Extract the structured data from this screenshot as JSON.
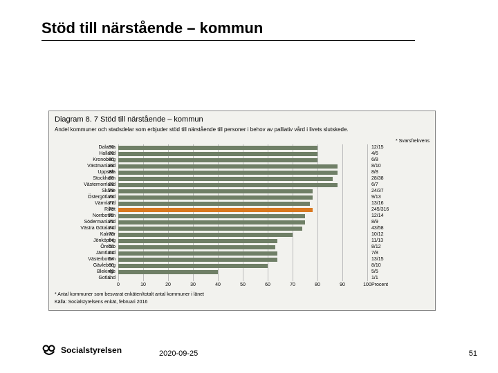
{
  "title": "Stöd till närstående – kommun",
  "chart": {
    "type": "bar-horizontal",
    "box_border": "#888888",
    "box_bg": "#f2f2ee",
    "title": "Diagram 8. 7 Stöd till närstående – kommun",
    "subtitle": "Andel kommuner och stadsdelar som erbjuder stöd till närstående till personer i behov av palliativ vård i livets slutskede.",
    "freq_header": "* Svarsfrekvens",
    "highlight_color": "#d9781f",
    "bar_color": "#6f7f66",
    "grid_color": "#bbbbbb",
    "text_color": "#000000",
    "title_fontsize": 11,
    "sub_fontsize": 8,
    "label_fontsize": 7,
    "xlim": [
      0,
      100
    ],
    "xtick_step": 10,
    "x_axis_unit": "Procent",
    "xticks": [
      0,
      10,
      20,
      30,
      40,
      50,
      60,
      70,
      80,
      90,
      100
    ],
    "rows": [
      {
        "label": "Dalarna",
        "value": 80,
        "freq": "12/15",
        "hl": false
      },
      {
        "label": "Halland",
        "value": 80,
        "freq": "4/6",
        "hl": false
      },
      {
        "label": "Kronoberg",
        "value": 80,
        "freq": "6/8",
        "hl": false
      },
      {
        "label": "Västmanland",
        "value": 88,
        "freq": "8/10",
        "hl": false
      },
      {
        "label": "Uppsala",
        "value": 88,
        "freq": "8/8",
        "hl": false
      },
      {
        "label": "Stockholm",
        "value": 86,
        "freq": "28/38",
        "hl": false
      },
      {
        "label": "Västernorrland",
        "value": 88,
        "freq": "6/7",
        "hl": false
      },
      {
        "label": "Skåne",
        "value": 78,
        "freq": "24/37",
        "hl": false
      },
      {
        "label": "Östergötland",
        "value": 78,
        "freq": "9/13",
        "hl": false
      },
      {
        "label": "Värmland",
        "value": 77,
        "freq": "13/16",
        "hl": false
      },
      {
        "label": "Riket",
        "value": 78,
        "freq": "245/316",
        "hl": true
      },
      {
        "label": "Norrbotten",
        "value": 75,
        "freq": "12/14",
        "hl": false
      },
      {
        "label": "Södermanland",
        "value": 75,
        "freq": "8/9",
        "hl": false
      },
      {
        "label": "Västra Götaland",
        "value": 74,
        "freq": "43/58",
        "hl": false
      },
      {
        "label": "Kalmar",
        "value": 70,
        "freq": "10/12",
        "hl": false
      },
      {
        "label": "Jönköping",
        "value": 64,
        "freq": "11/13",
        "hl": false
      },
      {
        "label": "Örebro",
        "value": 63,
        "freq": "8/12",
        "hl": false
      },
      {
        "label": "Jämtland",
        "value": 64,
        "freq": "7/8",
        "hl": false
      },
      {
        "label": "Västerbotten",
        "value": 64,
        "freq": "13/15",
        "hl": false
      },
      {
        "label": "Gävleborg",
        "value": 60,
        "freq": "8/10",
        "hl": false
      },
      {
        "label": "Blekinge",
        "value": 40,
        "freq": "5/5",
        "hl": false
      },
      {
        "label": "Gotland",
        "value": 0,
        "freq": "1/1",
        "hl": false
      }
    ],
    "footnote1": "* Antal kommuner som besvarat enkäten/totalt antal kommuner i länet",
    "footnote2": "Källa: Socialstyrelsens enkät, februari 2016"
  },
  "footer": {
    "logo_text": "Socialstyrelsen",
    "date": "2020-09-25",
    "page": "51"
  }
}
